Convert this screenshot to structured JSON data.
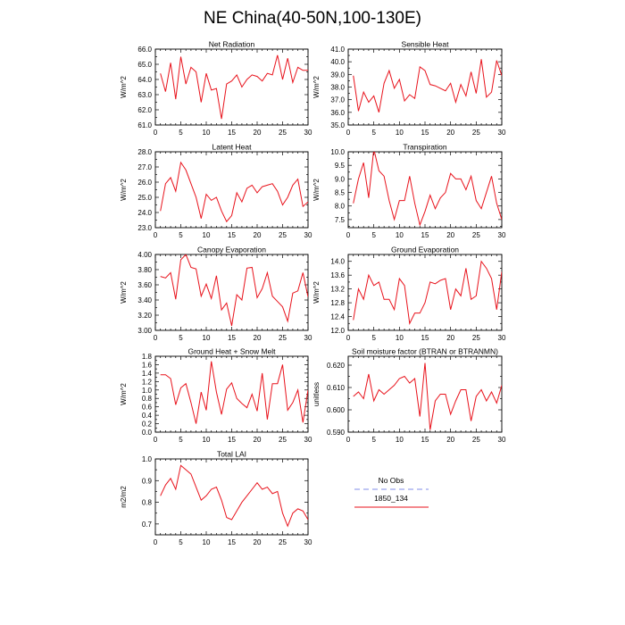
{
  "title": "NE China(40-50N,100-130E)",
  "colors": {
    "model": "#e8121b",
    "obs": "#9aa3ee",
    "axis": "#000000"
  },
  "legend": {
    "items": [
      {
        "label": "No Obs",
        "style": "dashed",
        "color": "#9aa3ee"
      },
      {
        "label": "1850_134",
        "style": "solid",
        "color": "#e8121b"
      }
    ]
  },
  "chart_data": [
    {
      "type": "line",
      "title": "Net Radiation",
      "ylabel": "W/m^2",
      "xlim": [
        0,
        30
      ],
      "ylim": [
        61.0,
        66.0
      ],
      "xticks": [
        0,
        5,
        10,
        15,
        20,
        25,
        30
      ],
      "yticks": [
        "61.0",
        "62.0",
        "63.0",
        "64.0",
        "65.0",
        "66.0"
      ],
      "series": [
        {
          "x": [
            1,
            2,
            3,
            4,
            5,
            6,
            7,
            8,
            9,
            10,
            11,
            12,
            13,
            14,
            15,
            16,
            17,
            18,
            19,
            20,
            21,
            22,
            23,
            24,
            25,
            26,
            27,
            28,
            29,
            30
          ],
          "values": [
            64.4,
            63.2,
            65.1,
            62.7,
            65.5,
            63.7,
            64.8,
            64.5,
            62.5,
            64.4,
            63.3,
            63.4,
            61.4,
            63.7,
            63.9,
            64.3,
            63.5,
            64.0,
            64.3,
            64.2,
            63.9,
            64.4,
            64.3,
            65.6,
            64.0,
            65.4,
            63.8,
            64.8,
            64.6,
            64.6
          ]
        }
      ]
    },
    {
      "type": "line",
      "title": "Sensible Heat",
      "ylabel": "W/m^2",
      "xlim": [
        0,
        30
      ],
      "ylim": [
        35.0,
        41.0
      ],
      "xticks": [
        0,
        5,
        10,
        15,
        20,
        25,
        30
      ],
      "yticks": [
        "35.0",
        "36.0",
        "37.0",
        "38.0",
        "39.0",
        "40.0",
        "41.0"
      ],
      "series": [
        {
          "x": [
            1,
            2,
            3,
            4,
            5,
            6,
            7,
            8,
            9,
            10,
            11,
            12,
            13,
            14,
            15,
            16,
            17,
            18,
            19,
            20,
            21,
            22,
            23,
            24,
            25,
            26,
            27,
            28,
            29,
            30
          ],
          "values": [
            38.9,
            36.1,
            37.6,
            36.8,
            37.3,
            36.0,
            38.3,
            39.3,
            37.9,
            38.6,
            36.9,
            37.4,
            37.1,
            39.6,
            39.3,
            38.2,
            38.1,
            37.9,
            37.7,
            38.3,
            36.8,
            38.2,
            37.3,
            39.2,
            37.5,
            40.2,
            37.2,
            37.6,
            40.1,
            38.9
          ]
        }
      ]
    },
    {
      "type": "line",
      "title": "Latent Heat",
      "ylabel": "W/m^2",
      "xlim": [
        0,
        30
      ],
      "ylim": [
        23.0,
        28.0
      ],
      "xticks": [
        0,
        5,
        10,
        15,
        20,
        25,
        30
      ],
      "yticks": [
        "23.0",
        "24.0",
        "25.0",
        "26.0",
        "27.0",
        "28.0"
      ],
      "series": [
        {
          "x": [
            1,
            2,
            3,
            4,
            5,
            6,
            7,
            8,
            9,
            10,
            11,
            12,
            13,
            14,
            15,
            16,
            17,
            18,
            19,
            20,
            21,
            22,
            23,
            24,
            25,
            26,
            27,
            28,
            29,
            30
          ],
          "values": [
            24.1,
            25.9,
            26.3,
            25.4,
            27.3,
            26.8,
            25.9,
            25.0,
            23.6,
            25.2,
            24.8,
            25.0,
            24.1,
            23.4,
            23.8,
            25.3,
            24.7,
            25.6,
            25.8,
            25.3,
            25.7,
            25.8,
            25.9,
            25.4,
            24.5,
            25.0,
            25.8,
            26.2,
            24.4,
            24.7
          ]
        }
      ]
    },
    {
      "type": "line",
      "title": "Transpiration",
      "ylabel": "W/m^2",
      "xlim": [
        0,
        30
      ],
      "ylim": [
        7.2,
        10.0
      ],
      "xticks": [
        0,
        5,
        10,
        15,
        20,
        25,
        30
      ],
      "yticks": [
        "7.5",
        "8.0",
        "8.5",
        "9.0",
        "9.5",
        "10.0"
      ],
      "series": [
        {
          "x": [
            1,
            2,
            3,
            4,
            5,
            6,
            7,
            8,
            9,
            10,
            11,
            12,
            13,
            14,
            15,
            16,
            17,
            18,
            19,
            20,
            21,
            22,
            23,
            24,
            25,
            26,
            27,
            28,
            29,
            30
          ],
          "values": [
            8.1,
            9.0,
            9.6,
            8.3,
            10.1,
            9.3,
            9.1,
            8.2,
            7.5,
            8.2,
            8.2,
            9.1,
            8.1,
            7.3,
            7.8,
            8.4,
            7.9,
            8.3,
            8.5,
            9.2,
            9.0,
            9.0,
            8.6,
            9.1,
            8.2,
            7.9,
            8.5,
            9.1,
            8.1,
            7.5
          ]
        }
      ]
    },
    {
      "type": "line",
      "title": "Canopy Evaporation",
      "ylabel": "W/m^2",
      "xlim": [
        0,
        30
      ],
      "ylim": [
        3.0,
        4.0
      ],
      "xticks": [
        0,
        5,
        10,
        15,
        20,
        25,
        30
      ],
      "yticks": [
        "3.00",
        "3.20",
        "3.40",
        "3.60",
        "3.80",
        "4.00"
      ],
      "series": [
        {
          "x": [
            1,
            2,
            3,
            4,
            5,
            6,
            7,
            8,
            9,
            10,
            11,
            12,
            13,
            14,
            15,
            16,
            17,
            18,
            19,
            20,
            21,
            22,
            23,
            24,
            25,
            26,
            27,
            28,
            29,
            30
          ],
          "values": [
            3.71,
            3.69,
            3.76,
            3.41,
            3.93,
            4.0,
            3.83,
            3.81,
            3.45,
            3.61,
            3.42,
            3.72,
            3.27,
            3.36,
            3.06,
            3.47,
            3.4,
            3.82,
            3.83,
            3.43,
            3.55,
            3.76,
            3.45,
            3.38,
            3.31,
            3.12,
            3.49,
            3.52,
            3.76,
            3.44
          ]
        }
      ]
    },
    {
      "type": "line",
      "title": "Ground Evaporation",
      "ylabel": "W/m^2",
      "xlim": [
        0,
        30
      ],
      "ylim": [
        12.0,
        14.2
      ],
      "xticks": [
        0,
        5,
        10,
        15,
        20,
        25,
        30
      ],
      "yticks": [
        "12.0",
        "12.4",
        "12.8",
        "13.2",
        "13.6",
        "14.0"
      ],
      "series": [
        {
          "x": [
            1,
            2,
            3,
            4,
            5,
            6,
            7,
            8,
            9,
            10,
            11,
            12,
            13,
            14,
            15,
            16,
            17,
            18,
            19,
            20,
            21,
            22,
            23,
            24,
            25,
            26,
            27,
            28,
            29,
            30
          ],
          "values": [
            12.3,
            13.2,
            12.9,
            13.6,
            13.3,
            13.4,
            12.9,
            12.9,
            12.6,
            13.5,
            13.3,
            12.2,
            12.5,
            12.5,
            12.8,
            13.4,
            13.35,
            13.45,
            13.5,
            12.6,
            13.2,
            13.0,
            13.8,
            12.9,
            13.0,
            14.0,
            13.8,
            13.5,
            12.6,
            13.7
          ]
        }
      ]
    },
    {
      "type": "line",
      "title": "Ground Heat + Snow Melt",
      "ylabel": "W/m^2",
      "xlim": [
        0,
        30
      ],
      "ylim": [
        0.0,
        1.8
      ],
      "xticks": [
        0,
        5,
        10,
        15,
        20,
        25,
        30
      ],
      "yticks": [
        "0.0",
        "0.2",
        "0.4",
        "0.6",
        "0.8",
        "1.0",
        "1.2",
        "1.4",
        "1.6",
        "1.8"
      ],
      "series": [
        {
          "x": [
            1,
            2,
            3,
            4,
            5,
            6,
            7,
            8,
            9,
            10,
            11,
            12,
            13,
            14,
            15,
            16,
            17,
            18,
            19,
            20,
            21,
            22,
            23,
            24,
            25,
            26,
            27,
            28,
            29,
            30
          ],
          "values": [
            1.36,
            1.36,
            1.27,
            0.65,
            1.05,
            1.15,
            0.7,
            0.2,
            0.95,
            0.52,
            1.68,
            0.95,
            0.42,
            1.02,
            1.17,
            0.8,
            0.68,
            0.58,
            0.9,
            0.5,
            1.4,
            0.3,
            1.15,
            1.15,
            1.6,
            0.52,
            0.7,
            1.0,
            0.23,
            1.0
          ]
        }
      ]
    },
    {
      "type": "line",
      "title": "Soil moisture factor (BTRAN or BTRANMN)",
      "ylabel": "unitless",
      "xlim": [
        0,
        30
      ],
      "ylim": [
        0.59,
        0.624
      ],
      "xticks": [
        0,
        5,
        10,
        15,
        20,
        25,
        30
      ],
      "yticks": [
        "0.590",
        "0.600",
        "0.610",
        "0.620"
      ],
      "series": [
        {
          "x": [
            1,
            2,
            3,
            4,
            5,
            6,
            7,
            8,
            9,
            10,
            11,
            12,
            13,
            14,
            15,
            16,
            17,
            18,
            19,
            20,
            21,
            22,
            23,
            24,
            25,
            26,
            27,
            28,
            29,
            30
          ],
          "values": [
            0.606,
            0.608,
            0.605,
            0.616,
            0.604,
            0.609,
            0.607,
            0.609,
            0.611,
            0.614,
            0.615,
            0.612,
            0.614,
            0.597,
            0.621,
            0.591,
            0.604,
            0.607,
            0.607,
            0.598,
            0.604,
            0.609,
            0.609,
            0.595,
            0.606,
            0.609,
            0.604,
            0.608,
            0.603,
            0.611
          ]
        }
      ]
    },
    {
      "type": "line",
      "title": "Total LAI",
      "ylabel": "m2/m2",
      "xlim": [
        0,
        30
      ],
      "ylim": [
        0.65,
        1.0
      ],
      "xticks": [
        0,
        5,
        10,
        15,
        20,
        25,
        30
      ],
      "yticks": [
        "0.7",
        "0.8",
        "0.9",
        "1.0"
      ],
      "series": [
        {
          "x": [
            1,
            2,
            3,
            4,
            5,
            6,
            7,
            8,
            9,
            10,
            11,
            12,
            13,
            14,
            15,
            16,
            17,
            18,
            19,
            20,
            21,
            22,
            23,
            24,
            25,
            26,
            27,
            28,
            29,
            30
          ],
          "values": [
            0.83,
            0.88,
            0.91,
            0.86,
            0.97,
            0.95,
            0.93,
            0.87,
            0.81,
            0.83,
            0.86,
            0.87,
            0.81,
            0.73,
            0.72,
            0.76,
            0.8,
            0.83,
            0.86,
            0.89,
            0.86,
            0.87,
            0.84,
            0.85,
            0.75,
            0.69,
            0.75,
            0.77,
            0.76,
            0.72
          ]
        }
      ]
    }
  ]
}
